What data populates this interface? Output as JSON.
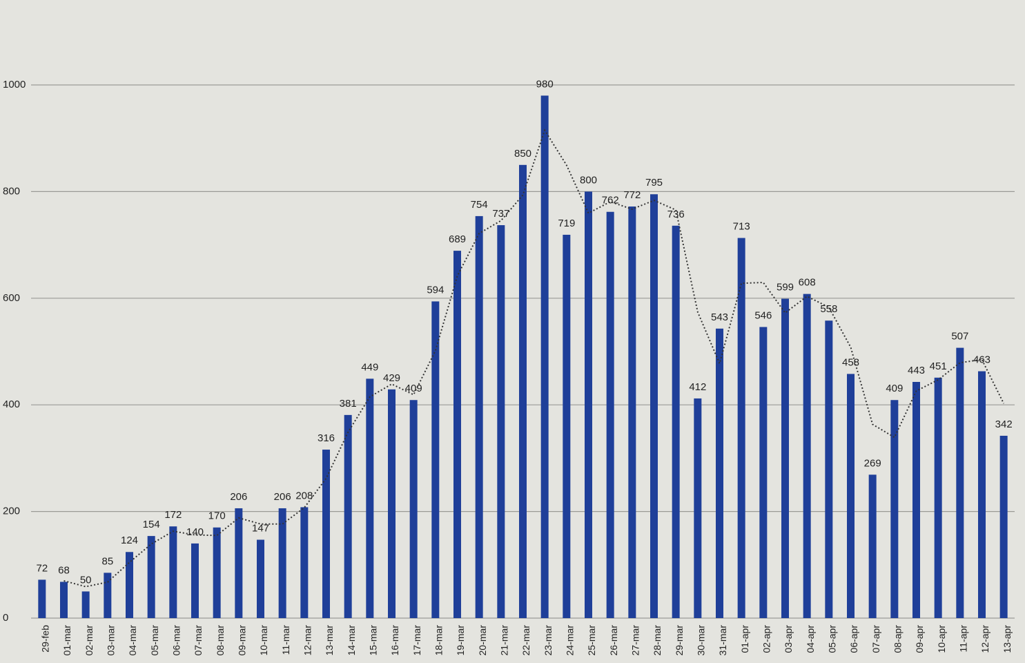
{
  "chart_data": {
    "type": "bar",
    "categories": [
      "29-feb",
      "01-mar",
      "02-mar",
      "03-mar",
      "04-mar",
      "05-mar",
      "06-mar",
      "07-mar",
      "08-mar",
      "09-mar",
      "10-mar",
      "11-mar",
      "12-mar",
      "13-mar",
      "14-mar",
      "15-mar",
      "16-mar",
      "17-mar",
      "18-mar",
      "19-mar",
      "20-mar",
      "21-mar",
      "22-mar",
      "23-mar",
      "24-mar",
      "25-mar",
      "26-mar",
      "27-mar",
      "28-mar",
      "29-mar",
      "30-mar",
      "31-mar",
      "01-apr",
      "02-apr",
      "03-apr",
      "04-apr",
      "05-apr",
      "06-apr",
      "07-apr",
      "08-apr",
      "09-apr",
      "10-apr",
      "11-apr",
      "12-apr",
      "13-apr"
    ],
    "values": [
      72,
      68,
      50,
      85,
      124,
      154,
      172,
      140,
      170,
      206,
      147,
      206,
      208,
      316,
      381,
      449,
      429,
      409,
      594,
      689,
      754,
      737,
      850,
      980,
      719,
      800,
      762,
      772,
      795,
      736,
      412,
      543,
      713,
      546,
      599,
      608,
      558,
      458,
      269,
      409,
      443,
      451,
      507,
      463,
      342
    ],
    "color": "#1f3f99",
    "ylim": [
      0,
      1000
    ],
    "yticks": [
      0,
      200,
      400,
      600,
      800,
      1000
    ],
    "grid": true,
    "moving_average_period": 2
  }
}
